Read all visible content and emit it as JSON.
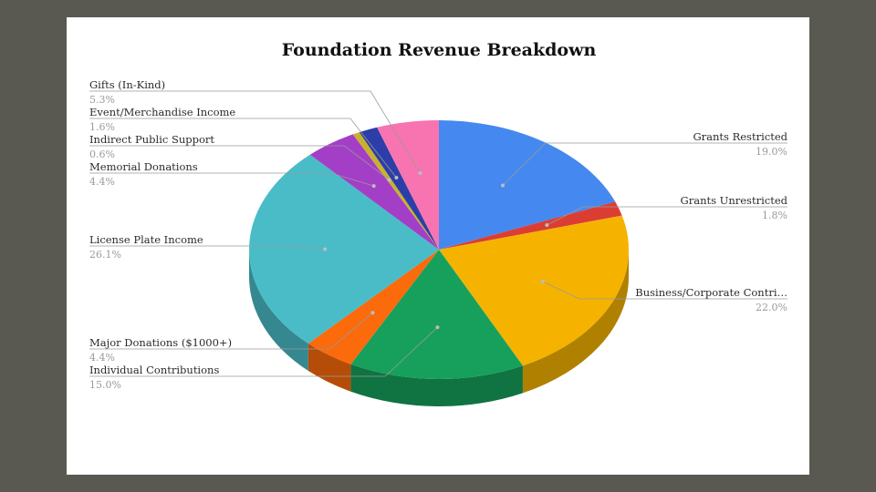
{
  "chart_data": {
    "type": "pie",
    "title": "Foundation Revenue Breakdown",
    "slices": [
      {
        "label": "Grants Restricted",
        "value": 19.0,
        "pct_label": "19.0%",
        "color": "#4589f0",
        "side": "right"
      },
      {
        "label": "Grants Unrestricted",
        "value": 1.8,
        "pct_label": "1.8%",
        "color": "#dc3d33",
        "side": "right"
      },
      {
        "label": "Business/Corporate Contri…",
        "value": 22.0,
        "pct_label": "22.0%",
        "color": "#f5b300",
        "side": "right"
      },
      {
        "label": "Individual Contributions",
        "value": 15.0,
        "pct_label": "15.0%",
        "color": "#16a05c",
        "side": "left"
      },
      {
        "label": "Major Donations ($1000+)",
        "value": 4.4,
        "pct_label": "4.4%",
        "color": "#fb6a0b",
        "side": "left"
      },
      {
        "label": "License Plate Income",
        "value": 26.1,
        "pct_label": "26.1%",
        "color": "#49bcc8",
        "side": "left"
      },
      {
        "label": "Memorial Donations",
        "value": 4.4,
        "pct_label": "4.4%",
        "color": "#a33ec7",
        "side": "left"
      },
      {
        "label": "Indirect Public Support",
        "value": 0.6,
        "pct_label": "0.6%",
        "color": "#c9b22b",
        "side": "left"
      },
      {
        "label": "Event/Merchandise Income",
        "value": 1.6,
        "pct_label": "1.6%",
        "color": "#2d3ea8",
        "side": "left"
      },
      {
        "label": "Gifts (In-Kind)",
        "value": 5.3,
        "pct_label": "5.3%",
        "color": "#f774b0",
        "side": "left"
      }
    ],
    "style": "3d",
    "legend": "none"
  }
}
